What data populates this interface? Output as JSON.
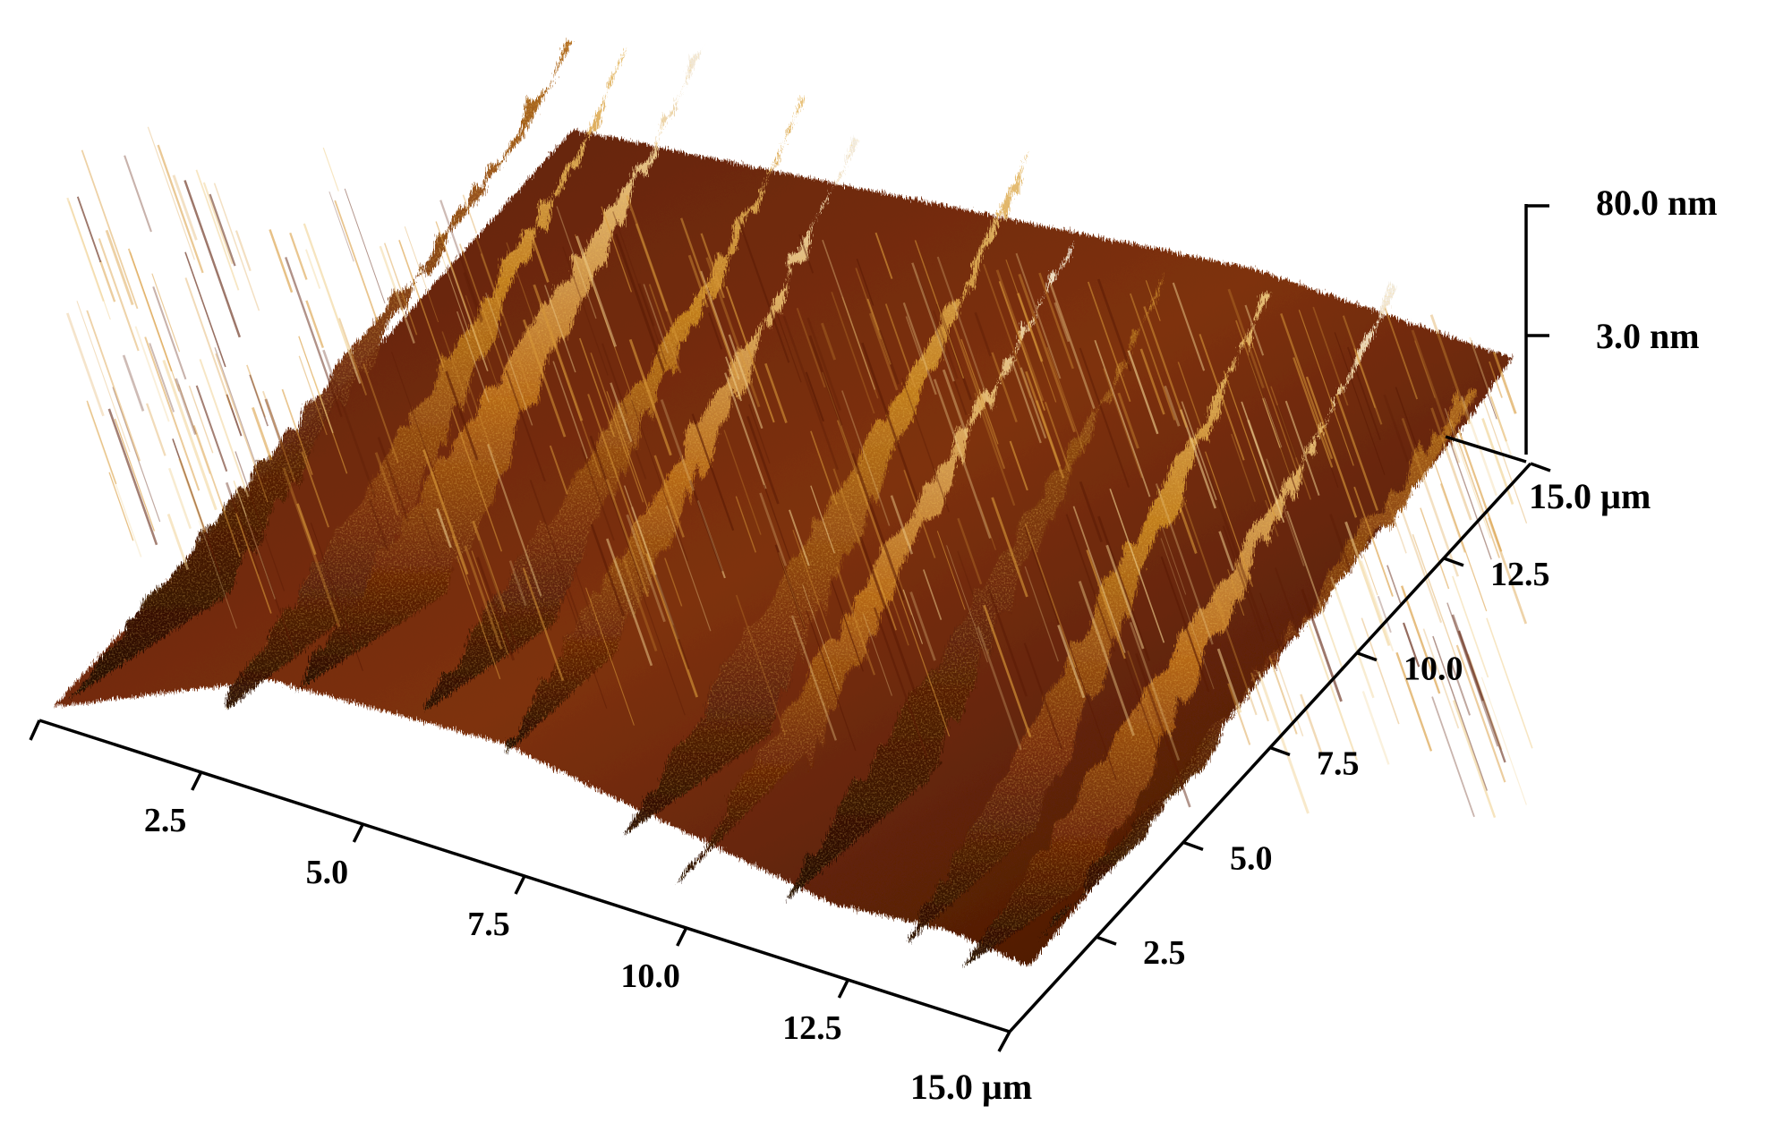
{
  "chart_data": {
    "type": "surface",
    "x_axis": {
      "ticks": [
        "2.5",
        "5.0",
        "7.5",
        "10.0",
        "12.5"
      ],
      "end_label": "15.0 µm",
      "range": [
        0,
        15
      ]
    },
    "y_axis": {
      "ticks": [
        "2.5",
        "5.0",
        "7.5",
        "10.0",
        "12.5"
      ],
      "end_label": "15.0 µm",
      "range": [
        0,
        15
      ]
    },
    "z_axis": {
      "ticks": [
        "3.0 nm",
        "80.0 nm"
      ]
    },
    "colors": {
      "dark": "#2a0c03",
      "mid": "#8e3e0c",
      "warm": "#c67a1c",
      "light": "#e0b065",
      "highlight": "#f2f0ec"
    }
  }
}
